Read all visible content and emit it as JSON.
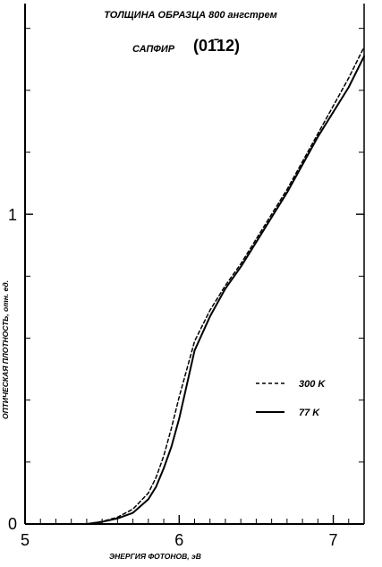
{
  "chart_data": {
    "type": "line",
    "title": "ТОЛЩИНА ОБРАЗЦА 800 ангстрем",
    "subtitle_label": "САПФИР",
    "subtitle_orientation": "(01̄12)",
    "xlabel": "ЭНЕРГИЯ ФОТОНОВ, эВ",
    "ylabel": "ОПТИЧЕСКАЯ ПЛОТНОСТЬ, отн. ед.",
    "xlim": [
      5.0,
      7.2
    ],
    "ylim": [
      0.0,
      1.68
    ],
    "x_ticks": [
      5,
      6,
      7
    ],
    "x_tick_labels": [
      "5",
      "6",
      "7"
    ],
    "y_ticks": [
      0,
      1
    ],
    "y_tick_labels": [
      "0",
      "1"
    ],
    "legend_position": "center-right",
    "series": [
      {
        "name": "300 K",
        "style": "dashed",
        "x": [
          5.4,
          5.5,
          5.6,
          5.7,
          5.8,
          5.85,
          5.9,
          5.95,
          6.0,
          6.05,
          6.1,
          6.2,
          6.3,
          6.4,
          6.5,
          6.6,
          6.7,
          6.8,
          6.9,
          7.0,
          7.1,
          7.2
        ],
        "y": [
          0.0,
          0.008,
          0.022,
          0.048,
          0.1,
          0.15,
          0.22,
          0.31,
          0.41,
          0.5,
          0.59,
          0.69,
          0.77,
          0.84,
          0.92,
          1.0,
          1.08,
          1.17,
          1.26,
          1.35,
          1.44,
          1.54
        ]
      },
      {
        "name": "77 K",
        "style": "solid",
        "x": [
          5.4,
          5.5,
          5.6,
          5.7,
          5.8,
          5.85,
          5.9,
          5.95,
          6.0,
          6.05,
          6.1,
          6.2,
          6.3,
          6.4,
          6.5,
          6.6,
          6.7,
          6.8,
          6.9,
          7.0,
          7.1,
          7.2
        ],
        "y": [
          0.0,
          0.007,
          0.018,
          0.036,
          0.08,
          0.12,
          0.18,
          0.25,
          0.34,
          0.45,
          0.56,
          0.67,
          0.76,
          0.83,
          0.91,
          0.99,
          1.07,
          1.16,
          1.25,
          1.33,
          1.41,
          1.51
        ]
      }
    ]
  }
}
